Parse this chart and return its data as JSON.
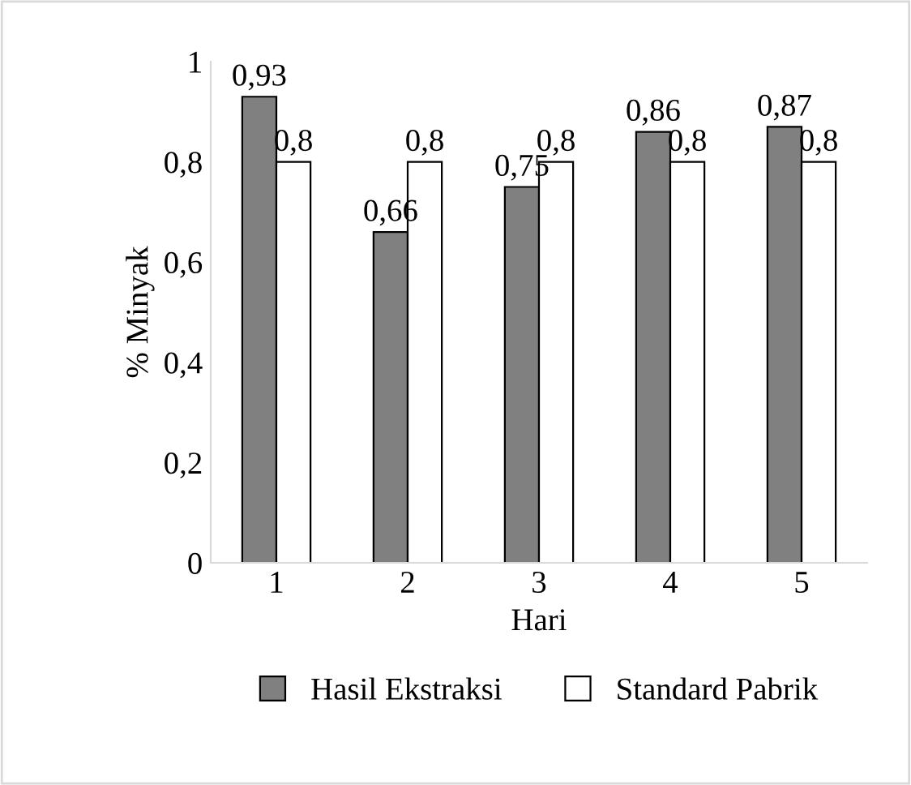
{
  "chart_data": {
    "type": "bar",
    "xlabel": "Hari",
    "ylabel": "% Minyak",
    "categories": [
      "1",
      "2",
      "3",
      "4",
      "5"
    ],
    "series": [
      {
        "name": "Hasil Ekstraksi",
        "color": "#808080",
        "values": [
          0.93,
          0.66,
          0.75,
          0.86,
          0.87
        ],
        "value_labels": [
          "0,93",
          "0,66",
          "0,75",
          "0,86",
          "0,87"
        ]
      },
      {
        "name": "Standard Pabrik",
        "color": "#ffffff",
        "values": [
          0.8,
          0.8,
          0.8,
          0.8,
          0.8
        ],
        "value_labels": [
          "0,8",
          "0,8",
          "0,8",
          "0,8",
          "0,8"
        ]
      }
    ],
    "ylim": [
      0,
      1
    ],
    "yticks": [
      0,
      {
        "value": 0.2,
        "label": "0,2"
      },
      {
        "value": 0.4,
        "label": "0,4"
      },
      {
        "value": 0.6,
        "label": "0,6"
      },
      {
        "value": 0.8,
        "label": "0,8"
      },
      1
    ],
    "grid": false,
    "legend": "bottom"
  }
}
